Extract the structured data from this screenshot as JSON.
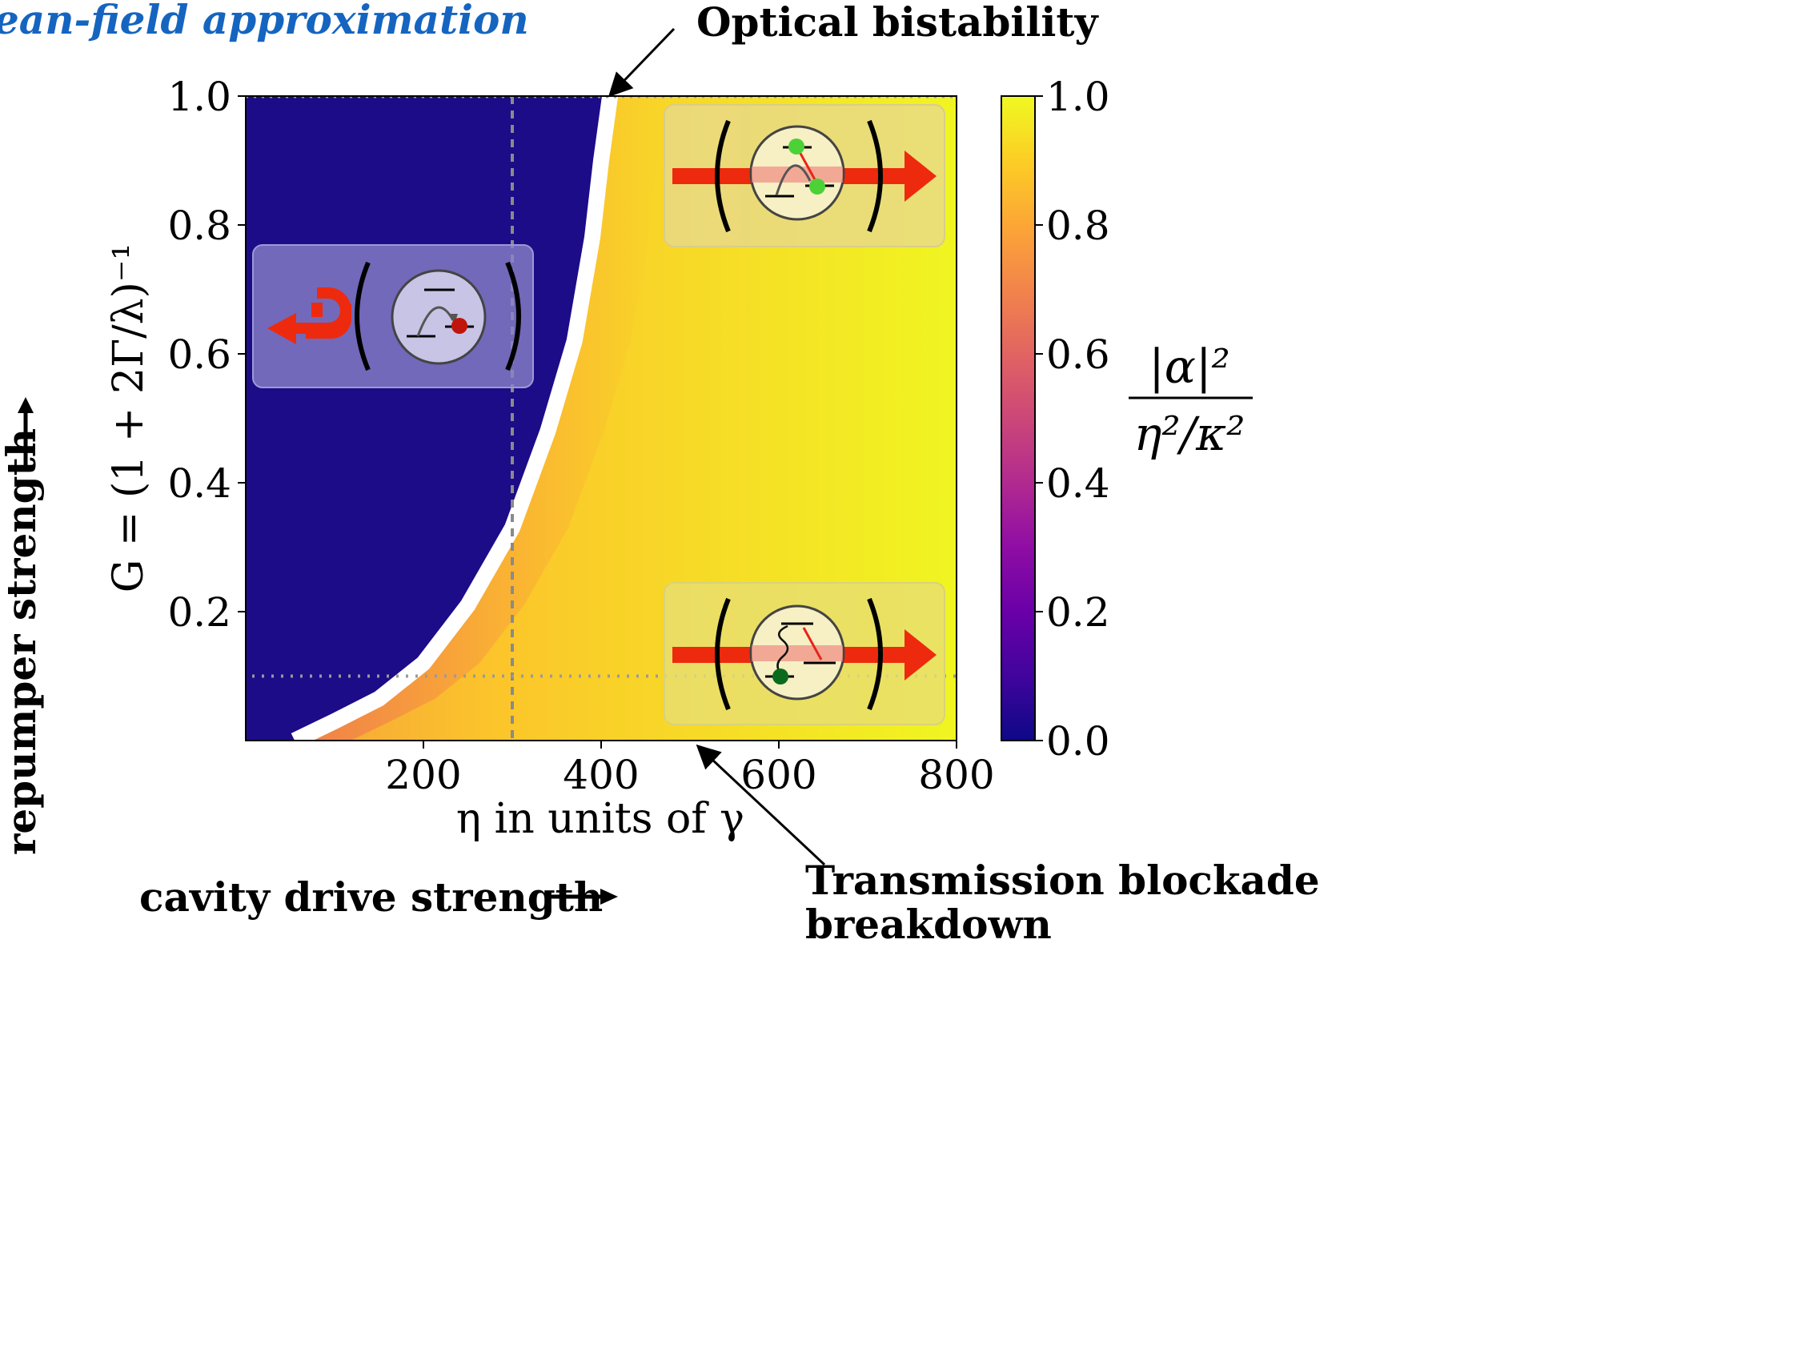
{
  "chart_data": {
    "type": "heatmap",
    "title": "Mean-field approximation",
    "title_visible": "ean-field approximation",
    "xlabel": "η in units of γ",
    "ylabel": "G = (1 + 2Γ/λ)⁻¹",
    "xlim": [
      0,
      800
    ],
    "ylim": [
      0,
      1.0
    ],
    "x_ticks": [
      "200",
      "400",
      "600",
      "800"
    ],
    "y_ticks": [
      "0.2",
      "0.4",
      "0.6",
      "0.8",
      "1.0"
    ],
    "colorbar": {
      "label_numerator": "|α|²",
      "label_denominator": "η²/κ²",
      "range": [
        0.0,
        1.0
      ],
      "ticks": [
        "0.0",
        "0.2",
        "0.4",
        "0.6",
        "0.8",
        "1.0"
      ],
      "colormap": "plasma"
    },
    "boundary_curve": {
      "name": "bistability boundary",
      "points": [
        {
          "x": 55,
          "y": 0.0
        },
        {
          "x": 100,
          "y": 0.03
        },
        {
          "x": 150,
          "y": 0.065
        },
        {
          "x": 200,
          "y": 0.12
        },
        {
          "x": 250,
          "y": 0.21
        },
        {
          "x": 300,
          "y": 0.33
        },
        {
          "x": 340,
          "y": 0.48
        },
        {
          "x": 370,
          "y": 0.62
        },
        {
          "x": 390,
          "y": 0.78
        },
        {
          "x": 400,
          "y": 0.9
        },
        {
          "x": 410,
          "y": 1.0
        }
      ]
    },
    "reference_lines": [
      {
        "orientation": "vertical",
        "x": 300,
        "style": "dashed"
      },
      {
        "orientation": "horizontal",
        "y": 0.1,
        "style": "dotted"
      },
      {
        "orientation": "horizontal",
        "y": 1.0,
        "style": "dotted"
      }
    ],
    "regions": [
      {
        "name": "blocked",
        "value": 0.0,
        "color": "#1c0c88"
      },
      {
        "name": "transmitting",
        "value": 1.0,
        "color": "#f0f921"
      }
    ]
  },
  "annotations": {
    "optical_bistability": "Optical bistability",
    "blockade_line1": "Transmission blockade",
    "blockade_line2": "breakdown"
  },
  "side_labels": {
    "repumper": "repumper strength",
    "cavity_drive": "cavity drive strength"
  },
  "colors": {
    "dark_region": "#1c0c88",
    "title_blue": "#1565c0",
    "beam_red": "#ee2a0e",
    "dot_green": "#4cd137",
    "dot_darkgreen": "#0b6b1d",
    "dot_red": "#c0150c"
  },
  "icons": [
    "reflection-arrow-icon",
    "transmission-arrow-icon",
    "atom-in-cavity-icon"
  ]
}
